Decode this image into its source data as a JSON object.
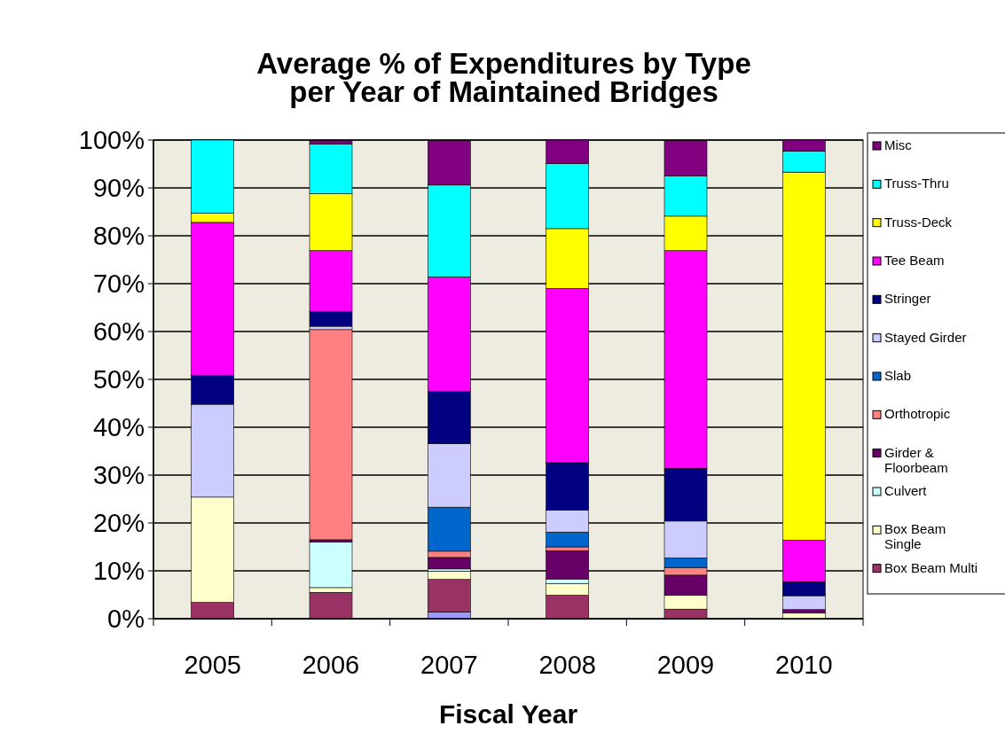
{
  "chart_data": {
    "type": "bar",
    "title": "Average % of Expenditures by Type per Year of Maintained Bridges",
    "xlabel": "Fiscal Year",
    "categories": [
      "2005",
      "2006",
      "2007",
      "2008",
      "2009",
      "2010"
    ],
    "stacked": true,
    "ylim": [
      0,
      100
    ],
    "yticks": [
      {
        "value": 0,
        "label": "0%"
      },
      {
        "value": 10,
        "label": "10%"
      },
      {
        "value": 20,
        "label": "20%"
      },
      {
        "value": 30,
        "label": "30%"
      },
      {
        "value": 40,
        "label": "40%"
      },
      {
        "value": 50,
        "label": "50%"
      },
      {
        "value": 60,
        "label": "60%"
      },
      {
        "value": 70,
        "label": "70%"
      },
      {
        "value": 80,
        "label": "80%"
      },
      {
        "value": 90,
        "label": "90%"
      },
      {
        "value": 100,
        "label": "100%"
      }
    ],
    "grid": "y",
    "legend": "right",
    "series": [
      {
        "color": "#9999ff",
        "values": [
          0,
          0,
          1.4,
          0,
          0,
          0
        ]
      },
      {
        "name": "Box Beam Multi",
        "color": "#993366",
        "values": [
          3.4,
          5.5,
          6.8,
          4.9,
          2.0,
          0
        ]
      },
      {
        "name": "Box Beam Single",
        "color": "#ffffcc",
        "values": [
          22,
          1.0,
          1.7,
          2.4,
          2.9,
          1.2
        ]
      },
      {
        "name": "Culvert",
        "color": "#ccffff",
        "values": [
          0,
          9.5,
          0.5,
          1.0,
          0,
          0
        ]
      },
      {
        "name": "Girder & Floorbeam",
        "color": "#660066",
        "values": [
          0,
          0.5,
          2.4,
          5.9,
          4.2,
          0.7
        ]
      },
      {
        "name": "Orthotropic",
        "color": "#ff8080",
        "values": [
          0,
          43.9,
          1.3,
          0.8,
          1.6,
          0
        ]
      },
      {
        "name": "Slab",
        "color": "#0066cc",
        "values": [
          0,
          0,
          9.2,
          3.1,
          2.0,
          0
        ]
      },
      {
        "name": "Stayed Girder",
        "color": "#ccccff",
        "values": [
          19.4,
          0.7,
          13.3,
          4.6,
          7.7,
          2.9
        ]
      },
      {
        "name": "Stringer",
        "color": "#000080",
        "values": [
          6,
          3.1,
          10.9,
          9.9,
          11.0,
          2.9
        ]
      },
      {
        "name": "Tee Beam",
        "color": "#ff00ff",
        "values": [
          32,
          12.7,
          23.9,
          36.4,
          45.5,
          8.7
        ]
      },
      {
        "name": "Truss-Deck",
        "color": "#ffff00",
        "values": [
          1.9,
          11.9,
          0,
          12.5,
          7.2,
          76.9
        ]
      },
      {
        "name": "Truss-Thru",
        "color": "#00ffff",
        "values": [
          15.3,
          10.4,
          19.2,
          13.6,
          8.4,
          4.4
        ]
      },
      {
        "name": "Misc",
        "color": "#800080",
        "values": [
          0,
          0.7,
          9.3,
          4.9,
          7.4,
          2.3
        ]
      }
    ]
  }
}
